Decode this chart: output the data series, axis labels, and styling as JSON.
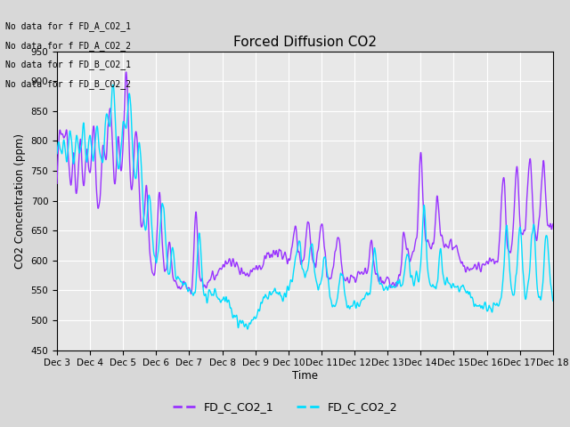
{
  "title": "Forced Diffusion CO2",
  "xlabel": "Time",
  "ylabel": "CO2 Concentration (ppm)",
  "ylim": [
    450,
    950
  ],
  "legend_labels": [
    "FD_C_CO2_1",
    "FD_C_CO2_2"
  ],
  "legend_colors": [
    "#9933ff",
    "#00ddff"
  ],
  "no_data_texts": [
    "No data for f FD_A_CO2_1",
    "No data for f FD_A_CO2_2",
    "No data for f FD_B_CO2_1",
    "No data for f FD_B_CO2_2"
  ],
  "color1": "#9933ff",
  "color2": "#00ddff",
  "bg_color": "#e8e8e8",
  "grid_color": "#ffffff",
  "tick_labels": [
    "Dec 3",
    "Dec 4",
    "Dec 5",
    "Dec 6",
    "Dec 7",
    "Dec 8",
    "Dec 9",
    "Dec 10",
    "Dec 11",
    "Dec 12",
    "Dec 13",
    "Dec 14",
    "Dec 15",
    "Dec 16",
    "Dec 17",
    "Dec 18"
  ],
  "linewidth": 1.0,
  "figsize": [
    6.4,
    4.8
  ],
  "dpi": 100
}
